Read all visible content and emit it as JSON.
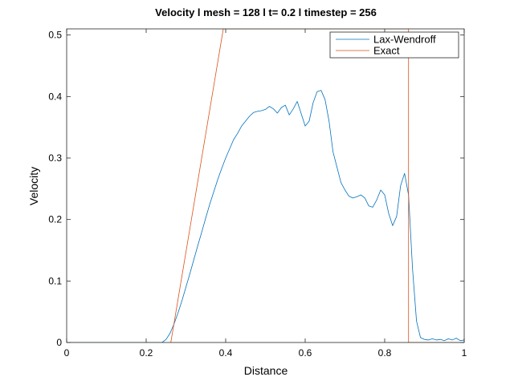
{
  "chart_data": {
    "type": "line",
    "title": "Velocity l mesh = 128 l t= 0.2 l timestep = 256",
    "xlabel": "Distance",
    "ylabel": "Velocity",
    "xlim": [
      0,
      1
    ],
    "ylim": [
      0,
      0.51
    ],
    "x_ticks": [
      "0",
      "0.2",
      "0.4",
      "0.6",
      "0.8",
      "1"
    ],
    "y_ticks": [
      "0",
      "0.1",
      "0.2",
      "0.3",
      "0.4",
      "0.5"
    ],
    "grid": false,
    "legend_position": "top-right",
    "series": [
      {
        "name": "Lax-Wendroff",
        "color": "#0072BD",
        "x": [
          0,
          0.05,
          0.1,
          0.15,
          0.2,
          0.24,
          0.25,
          0.26,
          0.27,
          0.28,
          0.29,
          0.3,
          0.31,
          0.32,
          0.33,
          0.34,
          0.35,
          0.36,
          0.37,
          0.38,
          0.39,
          0.4,
          0.41,
          0.42,
          0.43,
          0.44,
          0.45,
          0.46,
          0.47,
          0.48,
          0.49,
          0.5,
          0.51,
          0.52,
          0.53,
          0.54,
          0.55,
          0.56,
          0.57,
          0.58,
          0.59,
          0.6,
          0.61,
          0.62,
          0.63,
          0.64,
          0.65,
          0.66,
          0.67,
          0.68,
          0.69,
          0.7,
          0.71,
          0.72,
          0.73,
          0.74,
          0.75,
          0.76,
          0.77,
          0.78,
          0.79,
          0.8,
          0.81,
          0.82,
          0.83,
          0.84,
          0.85,
          0.86,
          0.87,
          0.88,
          0.89,
          0.9,
          0.91,
          0.92,
          0.93,
          0.94,
          0.95,
          0.96,
          0.97,
          0.98,
          0.99,
          1.0
        ],
        "y": [
          0,
          0,
          0,
          0,
          0,
          0,
          0.005,
          0.015,
          0.03,
          0.048,
          0.068,
          0.09,
          0.112,
          0.135,
          0.158,
          0.18,
          0.203,
          0.225,
          0.245,
          0.265,
          0.283,
          0.3,
          0.315,
          0.33,
          0.34,
          0.352,
          0.36,
          0.368,
          0.374,
          0.376,
          0.377,
          0.379,
          0.384,
          0.38,
          0.373,
          0.382,
          0.386,
          0.37,
          0.38,
          0.392,
          0.372,
          0.352,
          0.36,
          0.39,
          0.408,
          0.41,
          0.395,
          0.36,
          0.31,
          0.285,
          0.26,
          0.248,
          0.238,
          0.235,
          0.237,
          0.24,
          0.235,
          0.222,
          0.22,
          0.232,
          0.248,
          0.24,
          0.21,
          0.19,
          0.205,
          0.255,
          0.275,
          0.24,
          0.12,
          0.035,
          0.008,
          0.005,
          0.004,
          0.006,
          0.004,
          0.005,
          0.003,
          0.006,
          0.004,
          0.007,
          0.003,
          0.004
        ]
      },
      {
        "name": "Exact",
        "color": "#D95319",
        "x": [
          0.258,
          0.262,
          0.394,
          0.855,
          0.855,
          0.86,
          0.86,
          1.0
        ],
        "y": [
          0,
          0,
          0.51,
          0.51,
          0.51,
          0.51,
          0,
          0
        ]
      }
    ]
  }
}
